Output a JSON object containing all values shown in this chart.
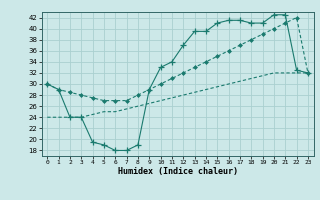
{
  "line1_x": [
    0,
    1,
    2,
    3,
    4,
    5,
    6,
    7,
    8,
    9,
    10,
    11,
    12,
    13,
    14,
    15,
    16,
    17,
    18,
    19,
    20,
    21,
    22,
    23
  ],
  "line1_y": [
    30,
    29,
    28.5,
    28,
    27.5,
    27,
    27,
    27,
    28,
    29,
    30,
    31,
    32,
    33,
    34,
    35,
    36,
    37,
    38,
    39,
    40,
    41,
    42,
    32
  ],
  "line2_x": [
    0,
    1,
    2,
    3,
    4,
    5,
    6,
    7,
    8,
    9,
    10,
    11,
    12,
    13,
    14,
    15,
    16,
    17,
    18,
    19,
    20,
    21,
    22,
    23
  ],
  "line2_y": [
    30,
    29,
    24,
    24,
    19.5,
    19,
    18,
    18,
    19,
    29,
    33,
    34,
    37,
    39.5,
    39.5,
    41,
    41.5,
    41.5,
    41,
    41,
    42.5,
    42.5,
    32.5,
    32
  ],
  "line3_x": [
    0,
    1,
    2,
    3,
    4,
    5,
    6,
    7,
    8,
    9,
    10,
    11,
    12,
    13,
    14,
    15,
    16,
    17,
    18,
    19,
    20,
    21,
    22,
    23
  ],
  "line3_y": [
    24,
    24,
    24,
    24,
    24.5,
    25,
    25,
    25.5,
    26,
    26.5,
    27,
    27.5,
    28,
    28.5,
    29,
    29.5,
    30,
    30.5,
    31,
    31.5,
    32,
    32,
    32,
    32
  ],
  "color": "#1a7a6e",
  "bg_color": "#cce8e8",
  "grid_color": "#aad0d0",
  "xlabel": "Humidex (Indice chaleur)",
  "ylim": [
    17,
    43
  ],
  "xlim": [
    -0.5,
    23.5
  ],
  "yticks": [
    18,
    20,
    22,
    24,
    26,
    28,
    30,
    32,
    34,
    36,
    38,
    40,
    42
  ],
  "xticks": [
    0,
    1,
    2,
    3,
    4,
    5,
    6,
    7,
    8,
    9,
    10,
    11,
    12,
    13,
    14,
    15,
    16,
    17,
    18,
    19,
    20,
    21,
    22,
    23
  ]
}
